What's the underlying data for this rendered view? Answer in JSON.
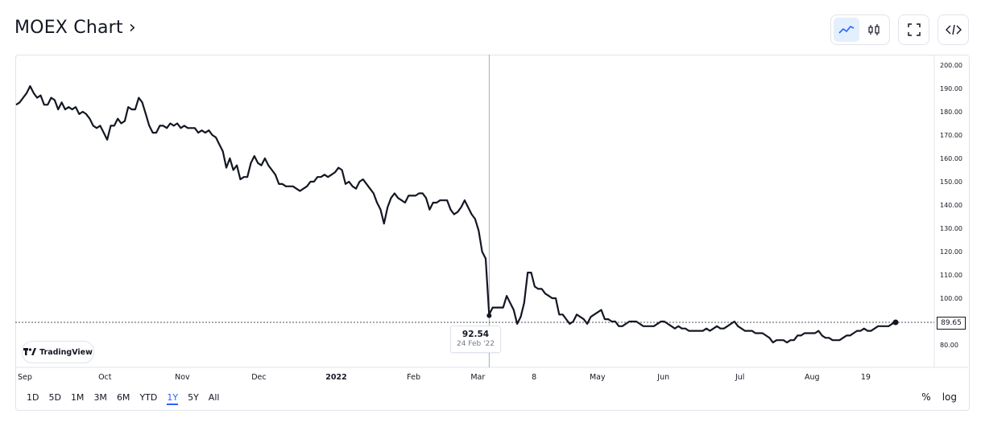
{
  "header": {
    "title": "MOEX Chart ›"
  },
  "toolbar": {
    "buttons": [
      "line-chart",
      "candles",
      "fullscreen",
      "embed-code"
    ],
    "active": "line-chart"
  },
  "watermark": "TradingView",
  "tooltip": {
    "value": "92.54",
    "date": "24 Feb '22"
  },
  "last_price": "89.65",
  "ranges": [
    "1D",
    "5D",
    "1M",
    "3M",
    "6M",
    "YTD",
    "1Y",
    "5Y",
    "All"
  ],
  "active_range": "1Y",
  "options": {
    "percent": "%",
    "log": "log"
  },
  "colors": {
    "line": "#131722",
    "accent": "#2962ff",
    "grid": "#e0e3eb",
    "axis_text": "#131722"
  },
  "chart_data": {
    "type": "line",
    "series": [
      {
        "values": [
          183,
          184,
          186,
          188,
          191,
          188,
          186,
          187,
          183,
          183,
          186,
          185,
          181,
          184,
          181,
          182,
          181,
          182,
          179,
          180,
          179,
          177,
          174,
          173,
          174,
          171,
          168,
          174,
          174,
          177,
          175,
          176,
          182,
          181,
          181,
          186,
          184,
          179,
          174,
          171,
          171,
          174,
          174,
          173,
          175,
          174,
          175,
          173,
          174,
          173,
          173,
          173,
          171,
          172,
          171,
          172,
          170,
          169,
          166,
          163,
          156,
          160,
          155,
          157,
          151,
          152,
          152,
          158,
          161,
          158,
          157,
          160,
          157,
          155,
          153,
          149,
          149,
          148,
          148,
          148,
          147,
          146,
          147,
          148,
          150,
          150,
          152,
          152,
          153,
          152,
          153,
          154,
          156,
          155,
          149,
          150,
          148,
          147,
          150,
          151,
          149,
          147,
          145,
          141,
          138,
          132,
          139,
          143,
          145,
          143,
          142,
          141,
          144,
          144,
          144,
          145,
          145,
          143,
          138,
          141,
          141,
          142,
          142,
          142,
          138,
          136,
          137,
          139,
          142,
          139,
          136,
          134,
          129,
          120,
          117,
          93,
          96,
          96,
          96,
          96,
          101,
          98,
          95,
          89,
          92,
          98,
          111,
          111,
          105,
          104,
          104,
          102,
          101,
          100,
          100,
          93,
          93,
          91,
          89,
          90,
          93,
          92,
          91,
          89,
          92,
          93,
          94,
          95,
          91,
          91,
          90,
          90,
          88,
          88,
          89,
          90,
          90,
          90,
          89,
          88,
          88,
          88,
          88,
          89,
          90,
          90,
          89,
          88,
          87,
          88,
          87,
          87,
          86,
          86,
          86,
          86,
          86,
          87,
          86,
          87,
          88,
          87,
          87,
          88,
          89,
          90,
          88,
          87,
          86,
          86,
          86,
          85,
          85,
          85,
          84,
          83,
          81,
          82,
          82,
          82,
          81,
          82,
          82,
          84,
          84,
          85,
          85,
          85,
          85,
          86,
          84,
          83,
          83,
          82,
          82,
          82,
          83,
          84,
          84,
          85,
          86,
          86,
          87,
          86,
          86,
          87,
          88,
          88,
          88,
          88,
          89,
          89.65
        ]
      }
    ],
    "ylim": [
      70,
      203
    ],
    "y_ticks": [
      "200.00",
      "190.00",
      "180.00",
      "170.00",
      "160.00",
      "150.00",
      "140.00",
      "130.00",
      "120.00",
      "110.00",
      "100.00",
      "90.00",
      "80.00"
    ],
    "x_labels": [
      "Sep",
      "Oct",
      "Nov",
      "Dec",
      "2022",
      "Feb",
      "Mar",
      "8",
      "May",
      "Jun",
      "Jul",
      "Aug",
      "19"
    ],
    "highlight": {
      "value": 92.54,
      "date": "24 Feb '22"
    },
    "last_value": 89.65,
    "grid": false
  }
}
